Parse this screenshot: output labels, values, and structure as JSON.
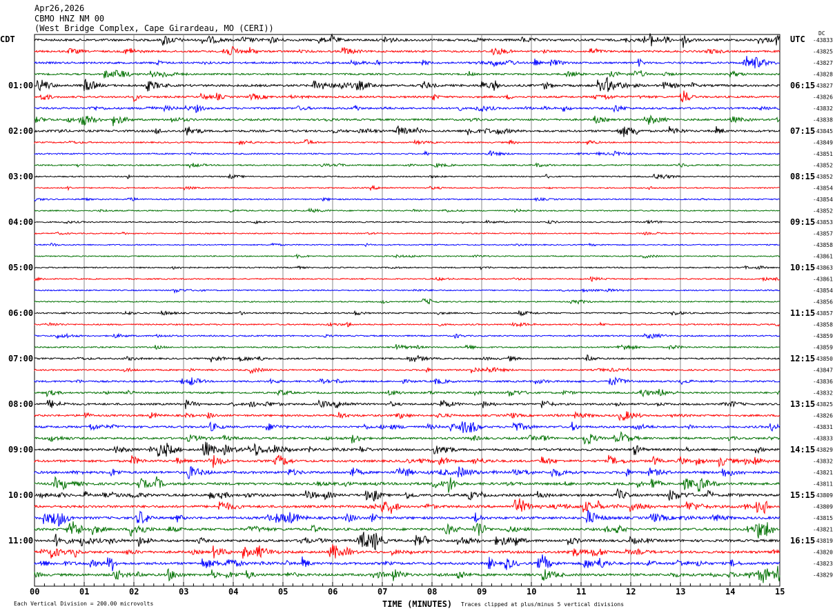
{
  "header": {
    "date": "Apr26,2026",
    "station": "CBMO HNZ NM 00",
    "location": "(West Bridge Complex, Cape Girardeau, MO (CERI))"
  },
  "left_tz": "CDT",
  "right_tz": "UTC",
  "dc_label": "DC",
  "footer": {
    "scale": "Each Vertical Division =  200.00 microvolts",
    "xlabel": "TIME (MINUTES)",
    "clip_note": "Traces clipped at plus/minus 5 vertical divisions"
  },
  "chart_data": {
    "type": "line",
    "title": "CBMO HNZ NM 00 helicorder",
    "xlabel": "TIME (MINUTES)",
    "xlim": [
      0,
      15
    ],
    "x_ticks": [
      "00",
      "01",
      "02",
      "03",
      "04",
      "05",
      "06",
      "07",
      "08",
      "09",
      "10",
      "11",
      "12",
      "13",
      "14",
      "15"
    ],
    "trace_colors": [
      "#000000",
      "#ff0000",
      "#0000ff",
      "#007000"
    ],
    "left_labels": [
      "",
      "01:00",
      "02:00",
      "03:00",
      "04:00",
      "05:00",
      "06:00",
      "07:00",
      "08:00",
      "09:00",
      "10:00",
      "11:00"
    ],
    "right_labels": [
      "",
      "06:15",
      "07:15",
      "08:15",
      "09:15",
      "10:15",
      "11:15",
      "12:15",
      "13:15",
      "14:15",
      "15:15",
      "16:15"
    ],
    "dc_offsets": [
      -43833,
      -43825,
      -43827,
      -43828,
      -43827,
      -43826,
      -43832,
      -43838,
      -43845,
      -43849,
      -43851,
      -43852,
      -43852,
      -43854,
      -43854,
      -43852,
      -43853,
      -43857,
      -43858,
      -43861,
      -43863,
      -43861,
      -43854,
      -43856,
      -43857,
      -43858,
      -43859,
      -43859,
      -43850,
      -43847,
      -43836,
      -43832,
      -43825,
      -43826,
      -43831,
      -43833,
      -43829,
      -43832,
      -43821,
      -43811,
      -43809,
      -43809,
      -43815,
      -43821,
      -43819,
      -43820,
      -43823,
      -43829
    ],
    "activity": [
      0.8,
      0.6,
      0.6,
      0.5,
      0.8,
      0.6,
      0.6,
      0.6,
      0.7,
      0.3,
      0.3,
      0.3,
      0.2,
      0.2,
      0.2,
      0.2,
      0.2,
      0.15,
      0.15,
      0.15,
      0.2,
      0.2,
      0.2,
      0.2,
      0.3,
      0.3,
      0.3,
      0.3,
      0.4,
      0.4,
      0.5,
      0.5,
      0.6,
      0.6,
      0.7,
      0.7,
      0.8,
      0.8,
      0.9,
      0.9,
      0.9,
      0.9,
      0.9,
      0.9,
      0.9,
      0.9,
      0.9,
      0.9
    ]
  }
}
